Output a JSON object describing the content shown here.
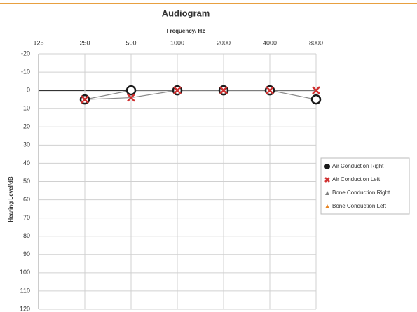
{
  "chart_data": {
    "type": "line",
    "title": "Audiogram",
    "x_label": "Frequency/ Hz",
    "y_label": "Hearing Level/dB",
    "categories": [
      "125",
      "250",
      "500",
      "1000",
      "2000",
      "4000",
      "8000"
    ],
    "series": [
      {
        "name": "Air Conduction Right",
        "color": "#1a1a1a",
        "marker": "circle",
        "values": [
          null,
          5,
          0,
          0,
          0,
          0,
          5
        ]
      },
      {
        "name": "Air Conduction Left",
        "color": "#d03030",
        "marker": "x",
        "values": [
          null,
          5,
          4,
          0,
          0,
          0,
          0
        ]
      },
      {
        "name": "Bone Conduction Right",
        "color": "#7f7f7f",
        "marker": "triangle",
        "values": [
          null,
          null,
          null,
          null,
          null,
          null,
          null
        ]
      },
      {
        "name": "Bone Conduction Left",
        "color": "#e8821e",
        "marker": "triangle",
        "values": [
          null,
          null,
          null,
          null,
          null,
          null,
          null
        ]
      }
    ],
    "ylim": [
      -20,
      120
    ],
    "yticks": [
      -20,
      -10,
      0,
      10,
      20,
      30,
      40,
      50,
      60,
      70,
      80,
      90,
      100,
      110,
      120
    ],
    "y_inverted": true,
    "grid": true,
    "legend": "right"
  }
}
